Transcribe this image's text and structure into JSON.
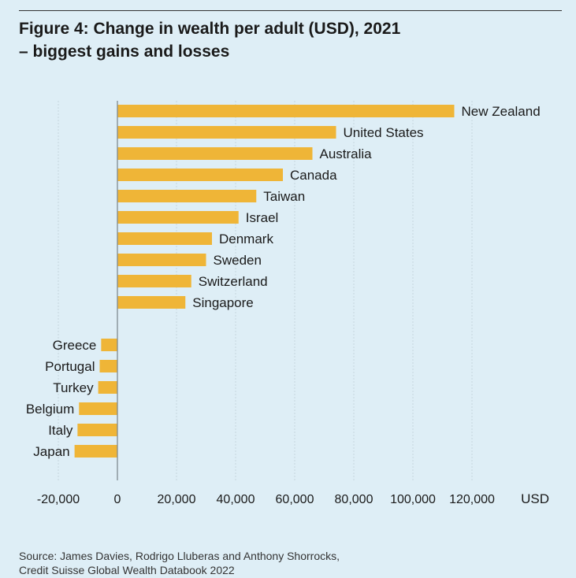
{
  "title_lines": [
    "Figure 4: Change in wealth per adult (USD), 2021",
    "– biggest gains and losses"
  ],
  "source_lines": [
    "Source: James Davies, Rodrigo Lluberas and Anthony Shorrocks,",
    "Credit Suisse Global Wealth Databook 2022"
  ],
  "colors": {
    "background": "#deeef6",
    "bar": "#efb537",
    "grid": "#c6d6df",
    "axis": "#7f8a90",
    "text": "#1a1a1a"
  },
  "chart_data": {
    "type": "bar",
    "orientation": "horizontal",
    "unit": "USD",
    "xlim": [
      -20000,
      120000
    ],
    "xticks": [
      "-20,000",
      "0",
      "20,000",
      "40,000",
      "60,000",
      "80,000",
      "100,000",
      "120,000"
    ],
    "xtick_values": [
      -20000,
      0,
      20000,
      40000,
      60000,
      80000,
      100000,
      120000
    ],
    "grid": true,
    "gains": [
      {
        "name": "New Zealand",
        "value": 114000
      },
      {
        "name": "United States",
        "value": 74000
      },
      {
        "name": "Australia",
        "value": 66000
      },
      {
        "name": "Canada",
        "value": 56000
      },
      {
        "name": "Taiwan",
        "value": 47000
      },
      {
        "name": "Israel",
        "value": 41000
      },
      {
        "name": "Denmark",
        "value": 32000
      },
      {
        "name": "Sweden",
        "value": 30000
      },
      {
        "name": "Switzerland",
        "value": 25000
      },
      {
        "name": "Singapore",
        "value": 23000
      }
    ],
    "losses": [
      {
        "name": "Greece",
        "value": -5500
      },
      {
        "name": "Portugal",
        "value": -6000
      },
      {
        "name": "Turkey",
        "value": -6500
      },
      {
        "name": "Belgium",
        "value": -13000
      },
      {
        "name": "Italy",
        "value": -13500
      },
      {
        "name": "Japan",
        "value": -14500
      }
    ]
  }
}
